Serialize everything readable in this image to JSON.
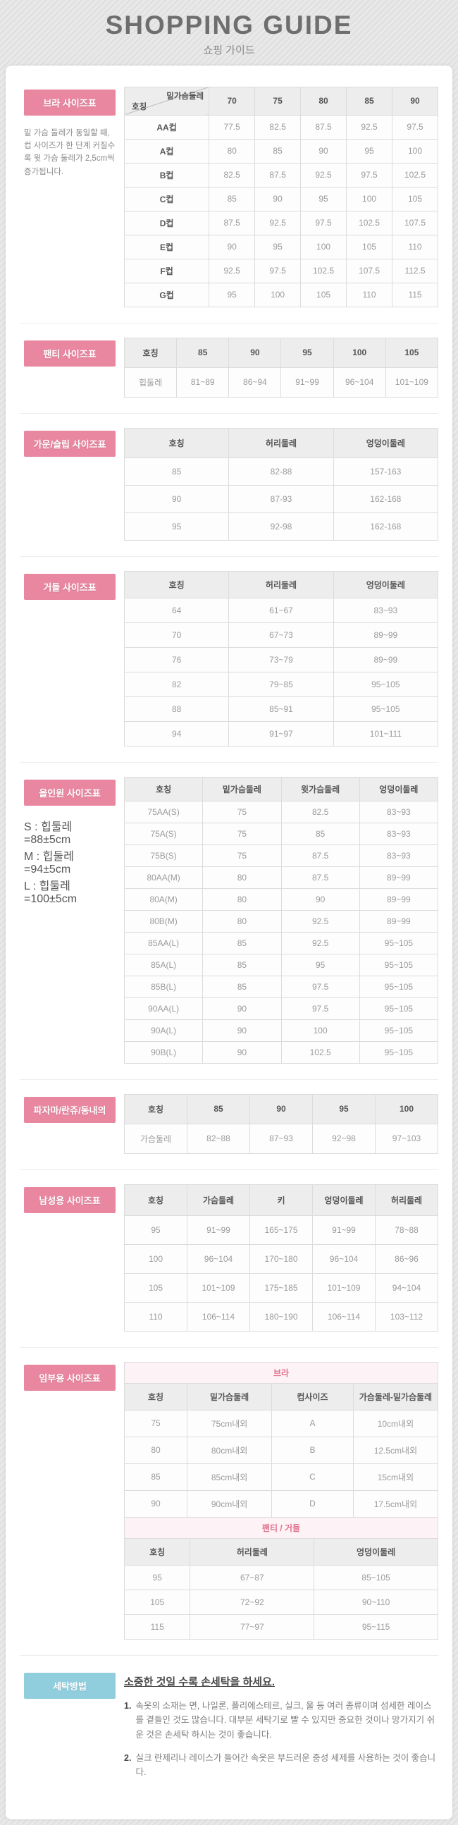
{
  "header": {
    "title": "SHOPPING GUIDE",
    "subtitle": "쇼핑 가이드"
  },
  "colors": {
    "section_label_pink": "#e986a0",
    "section_label_blue": "#90cedd",
    "group_title_pink": "#e0718f"
  },
  "sections": {
    "bra": {
      "label": "브라 사이즈표",
      "note": "밑 가슴 둘레가 동일할 때, 컵 사이즈가 한 단계 커질수록 윗 가슴 둘레가 2,5cm씩 증가됩니다.",
      "table": {
        "corner": {
          "top": "밑가슴둘레",
          "bottom": "호칭"
        },
        "headers": [
          "70",
          "75",
          "80",
          "85",
          "90"
        ],
        "widths": [
          "27%",
          "14.6%",
          "14.6%",
          "14.6%",
          "14.6%",
          "14.6%"
        ],
        "boldFirst": true,
        "rows": [
          [
            "AA컵",
            "77.5",
            "82.5",
            "87.5",
            "92.5",
            "97.5"
          ],
          [
            "A컵",
            "80",
            "85",
            "90",
            "95",
            "100"
          ],
          [
            "B컵",
            "82.5",
            "87.5",
            "92.5",
            "97.5",
            "102.5"
          ],
          [
            "C컵",
            "85",
            "90",
            "95",
            "100",
            "105"
          ],
          [
            "D컵",
            "87.5",
            "92.5",
            "97.5",
            "102.5",
            "107.5"
          ],
          [
            "E컵",
            "90",
            "95",
            "100",
            "105",
            "110"
          ],
          [
            "F컵",
            "92.5",
            "97.5",
            "102.5",
            "107.5",
            "112.5"
          ],
          [
            "G컵",
            "95",
            "100",
            "105",
            "110",
            "115"
          ]
        ]
      }
    },
    "panty": {
      "label": "팬티 사이즈표",
      "table": {
        "headers": [
          "호칭",
          "85",
          "90",
          "95",
          "100",
          "105"
        ],
        "rows": [
          [
            "힙둘레",
            "81~89",
            "86~94",
            "91~99",
            "96~104",
            "101~109"
          ]
        ]
      }
    },
    "gown": {
      "label": "가운/슬립 사이즈표",
      "table": {
        "headers": [
          "호칭",
          "허리둘레",
          "엉덩이둘레"
        ],
        "rows": [
          [
            "85",
            "82-88",
            "157-163"
          ],
          [
            "90",
            "87-93",
            "162-168"
          ],
          [
            "95",
            "92-98",
            "162-168"
          ]
        ]
      }
    },
    "girdle": {
      "label": "거들 사이즈표",
      "table": {
        "headers": [
          "호칭",
          "허리둘레",
          "엉덩이둘레"
        ],
        "rows": [
          [
            "64",
            "61~67",
            "83~93"
          ],
          [
            "70",
            "67~73",
            "89~99"
          ],
          [
            "76",
            "73~79",
            "89~99"
          ],
          [
            "82",
            "79~85",
            "95~105"
          ],
          [
            "88",
            "85~91",
            "95~105"
          ],
          [
            "94",
            "91~97",
            "101~111"
          ]
        ]
      }
    },
    "allinone": {
      "label": "올인원 사이즈표",
      "notes": [
        "S : 힙둘레=88±5cm",
        "M : 힙둘레=94±5cm",
        "L : 힙둘레=100±5cm"
      ],
      "table": {
        "headers": [
          "호칭",
          "밑가슴둘레",
          "윗가슴둘레",
          "엉덩이둘레"
        ],
        "rows": [
          [
            "75AA(S)",
            "75",
            "82.5",
            "83~93"
          ],
          [
            "75A(S)",
            "75",
            "85",
            "83~93"
          ],
          [
            "75B(S)",
            "75",
            "87.5",
            "83~93"
          ],
          [
            "80AA(M)",
            "80",
            "87.5",
            "89~99"
          ],
          [
            "80A(M)",
            "80",
            "90",
            "89~99"
          ],
          [
            "80B(M)",
            "80",
            "92.5",
            "89~99"
          ],
          [
            "85AA(L)",
            "85",
            "92.5",
            "95~105"
          ],
          [
            "85A(L)",
            "85",
            "95",
            "95~105"
          ],
          [
            "85B(L)",
            "85",
            "97.5",
            "95~105"
          ],
          [
            "90AA(L)",
            "90",
            "97.5",
            "95~105"
          ],
          [
            "90A(L)",
            "90",
            "100",
            "95~105"
          ],
          [
            "90B(L)",
            "90",
            "102.5",
            "95~105"
          ]
        ]
      }
    },
    "pajama": {
      "label": "파자마/란쥬/동내의",
      "table": {
        "headers": [
          "호칭",
          "85",
          "90",
          "95",
          "100"
        ],
        "rows": [
          [
            "가슴둘레",
            "82~88",
            "87~93",
            "92~98",
            "97~103"
          ]
        ]
      }
    },
    "mens": {
      "label": "남성용 사이즈표",
      "table": {
        "headers": [
          "호칭",
          "가슴둘레",
          "키",
          "엉덩이둘레",
          "허리둘레"
        ],
        "rows": [
          [
            "95",
            "91~99",
            "165~175",
            "91~99",
            "78~88"
          ],
          [
            "100",
            "96~104",
            "170~180",
            "96~104",
            "86~96"
          ],
          [
            "105",
            "101~109",
            "175~185",
            "101~109",
            "94~104"
          ],
          [
            "110",
            "106~114",
            "180~190",
            "106~114",
            "103~112"
          ]
        ]
      }
    },
    "maternity": {
      "label": "임부용 사이즈표",
      "bra_table": {
        "title": "브라",
        "headers": [
          "호칭",
          "밑가슴둘레",
          "컵사이즈",
          "가슴둘레-밑가슴둘레"
        ],
        "widths": [
          "20%",
          "27%",
          "26%",
          "27%"
        ],
        "rows": [
          [
            "75",
            "75cm내외",
            "A",
            "10cm내외"
          ],
          [
            "80",
            "80cm내외",
            "B",
            "12.5cm내외"
          ],
          [
            "85",
            "85cm내외",
            "C",
            "15cm내외"
          ],
          [
            "90",
            "90cm내외",
            "D",
            "17.5cm내외"
          ]
        ]
      },
      "bottom_table": {
        "title": "팬티 / 거들",
        "headers": [
          "호칭",
          "허리둘레",
          "엉덩이둘레"
        ],
        "widths": [
          "21%",
          "39.5%",
          "39.5%"
        ],
        "rows": [
          [
            "95",
            "67~87",
            "85~105"
          ],
          [
            "105",
            "72~92",
            "90~110"
          ],
          [
            "115",
            "77~97",
            "95~115"
          ]
        ]
      }
    },
    "washing": {
      "label": "세탁방법",
      "title": "소중한 것일 수록 손세탁을 하세요.",
      "items": [
        {
          "num": "1.",
          "text": "속옷의 소재는 면, 나일론, 폴리에스테르, 실크, 울 등 여러 종류이며 섬세한 레이스를 곁들인 것도 많습니다. 대부분 세탁기로 빨 수 있지만 중요한 것이나 망가지기 쉬운 것은 손세탁 하시는 것이 좋습니다."
        },
        {
          "num": "2.",
          "text": "실크 란제리나 레이스가 들어간 속옷은 부드러운 중성 세제를 사용하는 것이 좋습니다."
        }
      ]
    }
  }
}
